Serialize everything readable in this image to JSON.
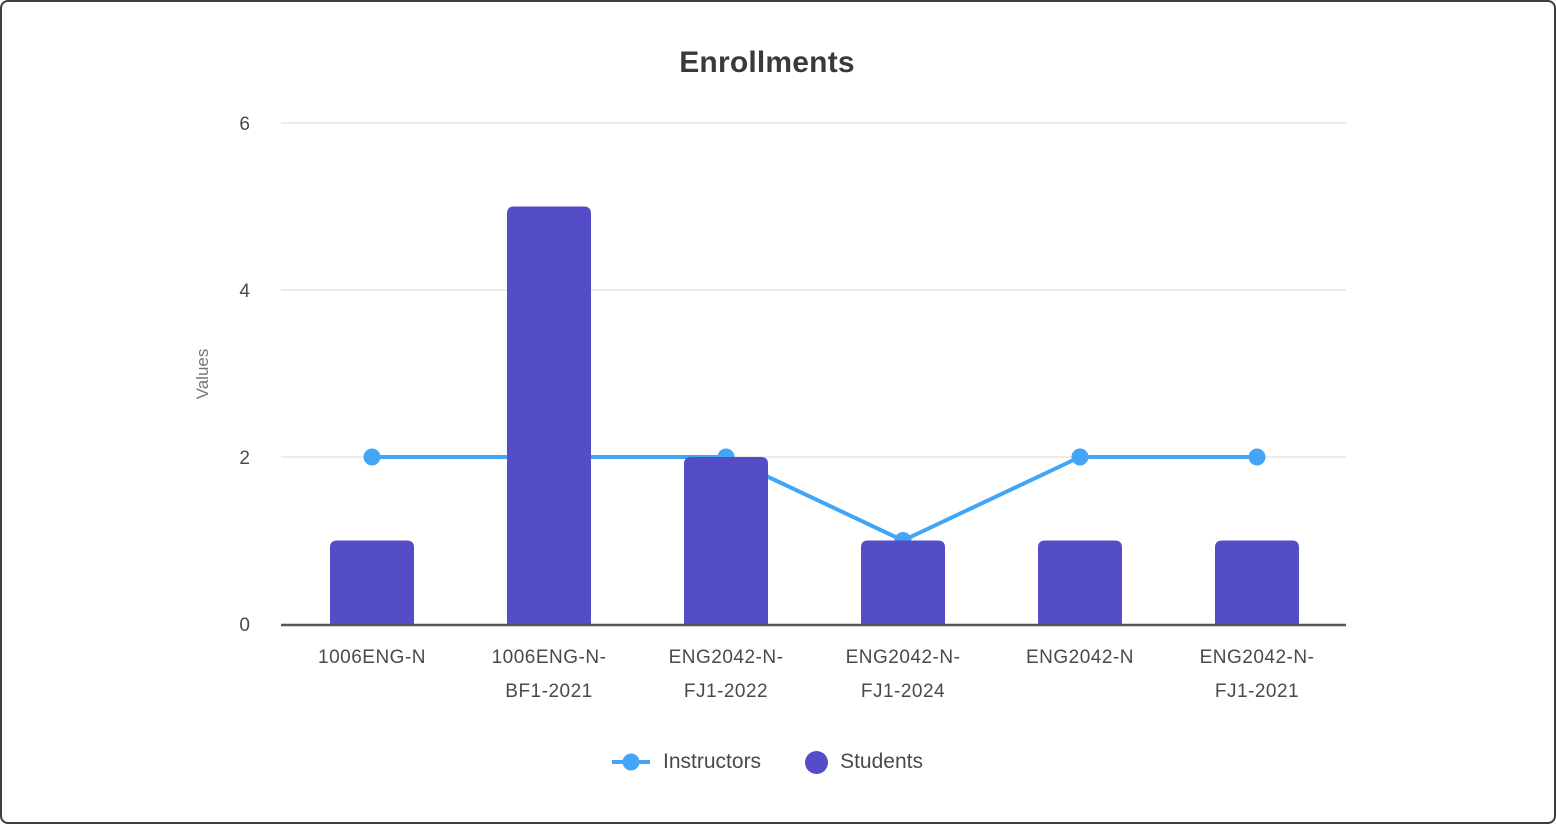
{
  "chart_data": {
    "type": "bar",
    "title": "Enrollments",
    "ylabel": "Values",
    "xlabel": "",
    "categories": [
      "1006ENG-N",
      "1006ENG-N-BF1-2021",
      "ENG2042-N-FJ1-2022",
      "ENG2042-N-FJ1-2024",
      "ENG2042-N",
      "ENG2042-N-FJ1-2021"
    ],
    "categories_wrapped": [
      [
        "1006ENG-N"
      ],
      [
        "1006ENG-N-",
        "BF1-2021"
      ],
      [
        "ENG2042-N-",
        "FJ1-2022"
      ],
      [
        "ENG2042-N-",
        "FJ1-2024"
      ],
      [
        "ENG2042-N"
      ],
      [
        "ENG2042-N-",
        "FJ1-2021"
      ]
    ],
    "series": [
      {
        "name": "Instructors",
        "type": "line",
        "values": [
          2,
          2,
          2,
          1,
          2,
          2
        ],
        "color": "#42A5F5"
      },
      {
        "name": "Students",
        "type": "bar",
        "values": [
          1,
          5,
          2,
          1,
          1,
          1
        ],
        "color": "#554CC8"
      }
    ],
    "yticks": [
      0,
      2,
      4,
      6
    ],
    "ylim": [
      0,
      6
    ],
    "grid": true,
    "legend_position": "bottom",
    "colors": {
      "gridline": "#ececec",
      "axis_line": "#56575b",
      "tick_label": "#4a4a4a",
      "axis_title": "#757575",
      "title": "#3a3a3a"
    }
  }
}
